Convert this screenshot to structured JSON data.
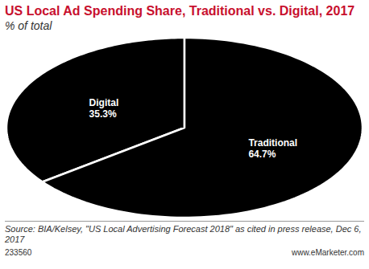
{
  "chart_data": {
    "type": "pie",
    "title": "US Local Ad Spending Share, Traditional vs. Digital, 2017",
    "subtitle": "% of total",
    "categories": [
      "Digital",
      "Traditional"
    ],
    "values": [
      35.3,
      64.7
    ],
    "value_labels": [
      "35.3%",
      "64.7%"
    ],
    "colors": [
      "#000000",
      "#000000"
    ],
    "data_labels": true,
    "source": "Source: BIA/Kelsey, \"US Local Advertising Forecast 2018\" as cited in press release, Dec 6, 2017",
    "chart_id": "233560",
    "website": "www.eMarketer.com"
  }
}
